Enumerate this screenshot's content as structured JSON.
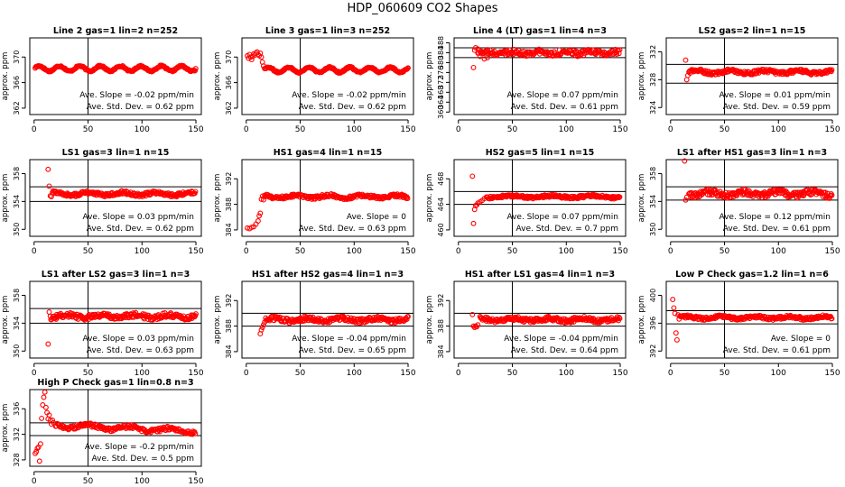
{
  "title": "HDP_060609  CO2 Shapes",
  "colors": {
    "point": "#ff0000",
    "axis": "#000000",
    "background": "#ffffff"
  },
  "chart_data": [
    {
      "type": "scatter",
      "title": "Line 2 gas=1 lin=2 n=252",
      "ylabel": "approx. ppm",
      "xlim": [
        -4,
        155
      ],
      "ylim": [
        361,
        373
      ],
      "xticks": [
        0,
        50,
        100,
        150
      ],
      "yticks": [
        362,
        366,
        370
      ],
      "ref_lines": {
        "v": [
          50
        ],
        "h": []
      },
      "slope_label": "Ave. Slope =  -0.02  ppm/min",
      "std_label": "Ave. Std. Dev. =  0.62  ppm",
      "trace": {
        "x0": 1,
        "x1": 150,
        "step": 0.6,
        "base": 368.2,
        "noise": 0.12,
        "amp": 0.4,
        "w": 3
      },
      "extra": []
    },
    {
      "type": "scatter",
      "title": "Line 3 gas=1 lin=3 n=252",
      "ylabel": "approx. ppm",
      "xlim": [
        -4,
        155
      ],
      "ylim": [
        361,
        373
      ],
      "xticks": [
        0,
        50,
        100,
        150
      ],
      "yticks": [
        362,
        366,
        370
      ],
      "ref_lines": {
        "v": [
          50
        ],
        "h": []
      },
      "slope_label": "Ave. Slope =  -0.02  ppm/min",
      "std_label": "Ave. Std. Dev. =  0.62  ppm",
      "trace": {
        "x0": 18,
        "x1": 150,
        "step": 0.55,
        "base": 368.0,
        "noise": 0.12,
        "amp": 0.4,
        "w": 3
      },
      "extra": [
        [
          1,
          370.2
        ],
        [
          2,
          369.8
        ],
        [
          3,
          370.4
        ],
        [
          4,
          370.0
        ],
        [
          5,
          369.6
        ],
        [
          6,
          370.1
        ],
        [
          7,
          370.5
        ],
        [
          8,
          370.3
        ],
        [
          9,
          370.6
        ],
        [
          10,
          370.8
        ],
        [
          11,
          370.4
        ],
        [
          12,
          370.2
        ],
        [
          13,
          370.6
        ],
        [
          14,
          370.0
        ],
        [
          15,
          369.2
        ],
        [
          16,
          368.6
        ],
        [
          17,
          368.2
        ]
      ]
    },
    {
      "type": "scatter",
      "title": "Line 4 (LT) gas=1 lin=4 n=3",
      "ylabel": "approx. ppm",
      "xlim": [
        -4,
        155
      ],
      "ylim": [
        359,
        390
      ],
      "xticks": [
        0,
        50,
        100,
        150
      ],
      "yticks": [
        360,
        364,
        368,
        372,
        376,
        380,
        384,
        388
      ],
      "ref_lines": {
        "v": [
          50
        ],
        "h": [
          386,
          382
        ]
      },
      "slope_label": "Ave. Slope =  0.07  ppm/min",
      "std_label": "Ave. Std. Dev. =  0.61  ppm",
      "trace": {
        "x0": 18,
        "x1": 150,
        "step": 0.7,
        "base": 384,
        "noise": 1.1,
        "amp": 0.4,
        "w": 4
      },
      "extra": [
        [
          14,
          378
        ],
        [
          15,
          385
        ],
        [
          16,
          386
        ],
        [
          18,
          385.5
        ],
        [
          20,
          382.5
        ],
        [
          24,
          381.5
        ],
        [
          27,
          382
        ]
      ]
    },
    {
      "type": "scatter",
      "title": "LS2 gas=2 lin=1 n=15",
      "ylabel": "approx. ppm",
      "xlim": [
        -4,
        155
      ],
      "ylim": [
        323,
        334
      ],
      "xticks": [
        0,
        50,
        100,
        150
      ],
      "yticks": [
        324,
        328,
        332
      ],
      "ref_lines": {
        "v": [
          50
        ],
        "h": [
          330.2,
          327.5
        ]
      },
      "slope_label": "Ave. Slope =  0.01  ppm/min",
      "std_label": "Ave. Std. Dev. =  0.59  ppm",
      "trace": {
        "x0": 17,
        "x1": 150,
        "step": 0.6,
        "base": 329.1,
        "noise": 0.25,
        "amp": 0.2,
        "w": 5
      },
      "extra": [
        [
          14,
          330.8
        ],
        [
          15,
          328.0
        ],
        [
          16,
          328.6
        ]
      ]
    },
    {
      "type": "scatter",
      "title": "LS1 gas=3 lin=1 n=15",
      "ylabel": "approx. ppm",
      "xlim": [
        -4,
        155
      ],
      "ylim": [
        349,
        360
      ],
      "xticks": [
        0,
        50,
        100,
        150
      ],
      "yticks": [
        350,
        354,
        358
      ],
      "ref_lines": {
        "v": [
          50
        ],
        "h": [
          356.1,
          354.0
        ]
      },
      "slope_label": "Ave. Slope =  0.03  ppm/min",
      "std_label": "Ave. Std. Dev. =  0.62  ppm",
      "trace": {
        "x0": 17,
        "x1": 150,
        "step": 0.6,
        "base": 355.1,
        "noise": 0.25,
        "amp": 0.2,
        "w": 5
      },
      "extra": [
        [
          13,
          358.6
        ],
        [
          14,
          356.2
        ],
        [
          15,
          354.8
        ],
        [
          16,
          354.7
        ]
      ]
    },
    {
      "type": "scatter",
      "title": "HS1 gas=4 lin=1 n=15",
      "ylabel": "approx. ppm",
      "xlim": [
        -4,
        155
      ],
      "ylim": [
        383,
        395
      ],
      "xticks": [
        0,
        50,
        100,
        150
      ],
      "yticks": [
        384,
        388,
        392
      ],
      "ref_lines": {
        "v": [
          50
        ],
        "h": []
      },
      "slope_label": "Ave. Slope =  0",
      "std_label": "Ave. Std. Dev. =  0.63  ppm",
      "trace": {
        "x0": 17,
        "x1": 150,
        "step": 0.6,
        "base": 389.2,
        "noise": 0.25,
        "amp": 0.2,
        "w": 5
      },
      "extra": [
        [
          1,
          384.3
        ],
        [
          3,
          384.2
        ],
        [
          5,
          384.4
        ],
        [
          7,
          384.5
        ],
        [
          9,
          384.9
        ],
        [
          11,
          385.4
        ],
        [
          12,
          386.2
        ],
        [
          13,
          386.6
        ],
        [
          14,
          388.8
        ],
        [
          15,
          389.3
        ],
        [
          16,
          388.7
        ]
      ]
    },
    {
      "type": "scatter",
      "title": "HS2 gas=5 lin=1 n=15",
      "ylabel": "approx. ppm",
      "xlim": [
        -4,
        155
      ],
      "ylim": [
        459,
        471
      ],
      "xticks": [
        0,
        50,
        100,
        150
      ],
      "yticks": [
        460,
        464,
        468
      ],
      "ref_lines": {
        "v": [
          50
        ],
        "h": [
          466,
          464
        ]
      },
      "slope_label": "Ave. Slope =  0.07  ppm/min",
      "std_label": "Ave. Std. Dev. =  0.7  ppm",
      "trace": {
        "x0": 26,
        "x1": 150,
        "step": 0.6,
        "base": 465.2,
        "noise": 0.2,
        "amp": 0.15,
        "w": 6
      },
      "extra": [
        [
          13,
          468.4
        ],
        [
          14,
          461.0
        ],
        [
          15,
          463.2
        ],
        [
          16,
          463.8
        ],
        [
          17,
          463.9
        ],
        [
          18,
          464.2
        ],
        [
          20,
          464.4
        ],
        [
          22,
          464.6
        ],
        [
          24,
          464.9
        ]
      ]
    },
    {
      "type": "scatter",
      "title": "LS1 after HS1 gas=3 lin=1 n=3",
      "ylabel": "approx. ppm",
      "xlim": [
        -4,
        155
      ],
      "ylim": [
        349,
        360
      ],
      "xticks": [
        0,
        50,
        100,
        150
      ],
      "yticks": [
        350,
        354,
        358
      ],
      "ref_lines": {
        "v": [
          50
        ],
        "h": [
          356.1,
          354.2
        ]
      },
      "slope_label": "Ave. Slope =  0.12  ppm/min",
      "std_label": "Ave. Std. Dev. =  0.61  ppm",
      "trace": {
        "x0": 17,
        "x1": 150,
        "step": 0.6,
        "base": 355.1,
        "noise": 0.45,
        "amp": 0.25,
        "w": 5
      },
      "extra": [
        [
          13,
          359.8
        ],
        [
          14,
          354.2
        ],
        [
          15,
          354.6
        ]
      ]
    },
    {
      "type": "scatter",
      "title": "LS1 after LS2 gas=3 lin=1 n=3",
      "ylabel": "approx. ppm",
      "xlim": [
        -4,
        155
      ],
      "ylim": [
        349,
        360
      ],
      "xticks": [
        0,
        50,
        100,
        150
      ],
      "yticks": [
        350,
        354,
        358
      ],
      "ref_lines": {
        "v": [
          50
        ],
        "h": [
          356.1,
          354.0
        ]
      },
      "slope_label": "Ave. Slope =  0.03  ppm/min",
      "std_label": "Ave. Std. Dev. =  0.63  ppm",
      "trace": {
        "x0": 15,
        "x1": 150,
        "step": 0.6,
        "base": 355.0,
        "noise": 0.35,
        "amp": 0.2,
        "w": 5
      },
      "extra": [
        [
          13,
          351.0
        ],
        [
          14,
          355.6
        ]
      ]
    },
    {
      "type": "scatter",
      "title": "HS1 after HS2 gas=4 lin=1 n=3",
      "ylabel": "approx. ppm",
      "xlim": [
        -4,
        155
      ],
      "ylim": [
        383,
        395
      ],
      "xticks": [
        0,
        50,
        100,
        150
      ],
      "yticks": [
        384,
        388,
        392
      ],
      "ref_lines": {
        "v": [
          50
        ],
        "h": [
          390,
          388
        ]
      },
      "slope_label": "Ave. Slope =  -0.04  ppm/min",
      "std_label": "Ave. Std. Dev. =  0.65  ppm",
      "trace": {
        "x0": 18,
        "x1": 150,
        "step": 0.6,
        "base": 389.0,
        "noise": 0.35,
        "amp": 0.2,
        "w": 5
      },
      "extra": [
        [
          13,
          386.8
        ],
        [
          14,
          387.4
        ],
        [
          15,
          387.8
        ],
        [
          16,
          388.2
        ],
        [
          17,
          388.6
        ]
      ]
    },
    {
      "type": "scatter",
      "title": "HS1 after LS1 gas=4 lin=1 n=3",
      "ylabel": "approx. ppm",
      "xlim": [
        -4,
        155
      ],
      "ylim": [
        383,
        395
      ],
      "xticks": [
        0,
        50,
        100,
        150
      ],
      "yticks": [
        384,
        388,
        392
      ],
      "ref_lines": {
        "v": [
          50
        ],
        "h": [
          390,
          388
        ]
      },
      "slope_label": "Ave. Slope =  -0.04  ppm/min",
      "std_label": "Ave. Std. Dev. =  0.64  ppm",
      "trace": {
        "x0": 20,
        "x1": 150,
        "step": 0.6,
        "base": 389.0,
        "noise": 0.35,
        "amp": 0.2,
        "w": 5
      },
      "extra": [
        [
          13,
          389.8
        ],
        [
          14,
          388.0
        ],
        [
          15,
          387.8
        ],
        [
          16,
          388.0
        ],
        [
          17,
          387.9
        ],
        [
          18,
          388.2
        ]
      ]
    },
    {
      "type": "scatter",
      "title": "Low P Check gas=1.2 lin=1 n=6",
      "ylabel": "approx. ppm",
      "xlim": [
        -4,
        155
      ],
      "ylim": [
        391,
        402
      ],
      "xticks": [
        0,
        50,
        100,
        150
      ],
      "yticks": [
        392,
        396,
        400
      ],
      "ref_lines": {
        "v": [
          50
        ],
        "h": [
          397.8,
          395.9
        ]
      },
      "slope_label": "Ave. Slope =  0",
      "std_label": "Ave. Std. Dev. =  0.61  ppm",
      "trace": {
        "x0": 8,
        "x1": 150,
        "step": 0.6,
        "base": 396.8,
        "noise": 0.22,
        "amp": 0.15,
        "w": 5
      },
      "extra": [
        [
          2,
          399.4
        ],
        [
          3,
          398.2
        ],
        [
          4,
          397.4
        ],
        [
          5,
          394.6
        ],
        [
          6,
          393.6
        ],
        [
          7,
          397.2
        ]
      ]
    },
    {
      "type": "scatter",
      "title": "High P Check gas=1 lin=0.8 n=3",
      "ylabel": "approx. ppm",
      "xlim": [
        -4,
        155
      ],
      "ylim": [
        327,
        339
      ],
      "xticks": [
        0,
        50,
        100,
        150
      ],
      "yticks": [
        328,
        332,
        336
      ],
      "ref_lines": {
        "v": [
          50
        ],
        "h": [
          333.8,
          331.8
        ]
      },
      "slope_label": "Ave. Slope =  -0.2  ppm/min",
      "std_label": "Ave. Std. Dev. =  0.5  ppm",
      "trace": {
        "x0": 20,
        "x1": 150,
        "step": 0.7,
        "base": 333.4,
        "noise": 0.3,
        "amp": 0.3,
        "w": 6,
        "slope": -0.007
      },
      "extra": [
        [
          1,
          329.0
        ],
        [
          2,
          329.3
        ],
        [
          3,
          329.8
        ],
        [
          4,
          330.0
        ],
        [
          5,
          327.8
        ],
        [
          6,
          330.5
        ],
        [
          7,
          334.5
        ],
        [
          8,
          336.6
        ],
        [
          9,
          337.8
        ],
        [
          10,
          338.6
        ],
        [
          11,
          336.2
        ],
        [
          12,
          335.4
        ],
        [
          13,
          334.4
        ],
        [
          14,
          335.0
        ],
        [
          15,
          334.2
        ],
        [
          16,
          333.6
        ],
        [
          17,
          334.2
        ],
        [
          18,
          333.8
        ]
      ]
    }
  ]
}
